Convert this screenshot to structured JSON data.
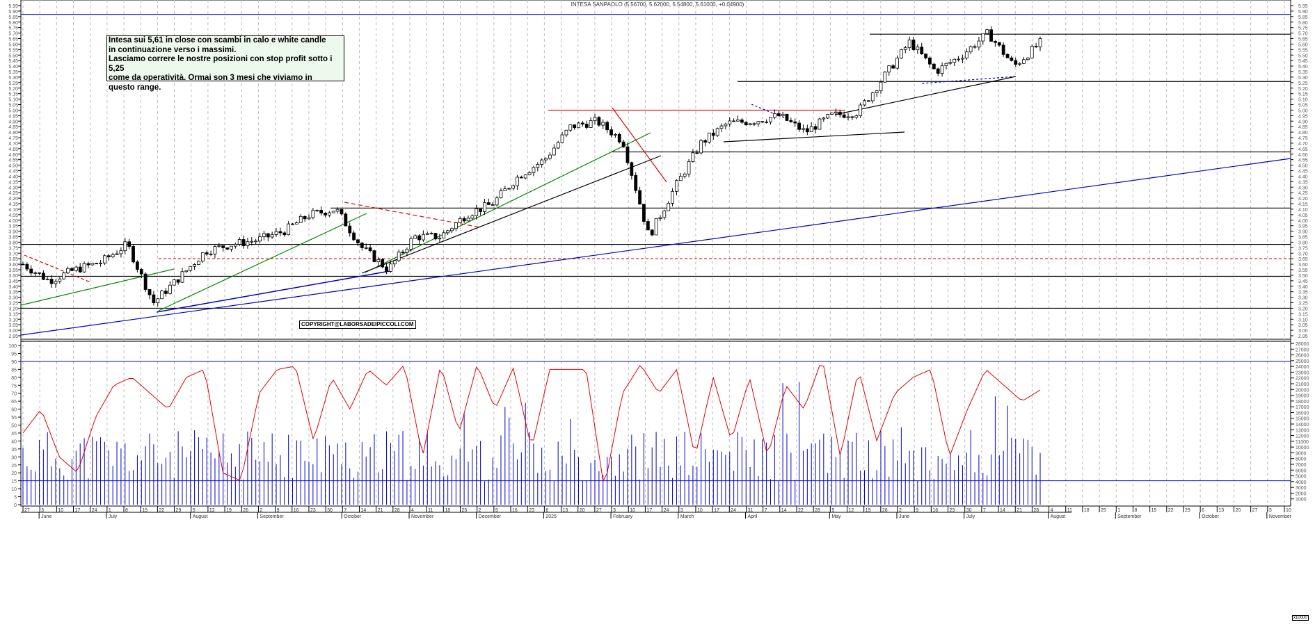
{
  "header": {
    "title": "INTESA SANPAOLO (5.56700, 5.62000, 5.54800, 5.61000, +0.04900)"
  },
  "annotation": {
    "text": "Intesa sui 5,61 in close con scambi in calo e white candle\nin continuazione verso i massimi.\nLasciamo correre le nostre posizioni con stop profit sotto i 5,25\ncome da operatività. Ormai son 3 mesi che viviamo in\nquesto range."
  },
  "copyright": "COPYRIGHT@LABORSADEIPICCOLI.COM",
  "volume_unit": "x10000",
  "colors": {
    "price_candles": "#000000",
    "oscillator_line": "#e00000",
    "volume_bars": "#0000cc",
    "support_lines": "#000000",
    "blue_trendline": "#0000cc",
    "green_trendline": "#008800",
    "red_resistance": "#e00000",
    "note_background": "#eef9ee",
    "grid": "#bbbbbb"
  },
  "chart_data": [
    {
      "type": "candlestick",
      "title": "INTESA SANPAOLO (5.56700, 5.62000, 5.54800, 5.61000, +0.04900)",
      "ohlc_last": {
        "open": 5.567,
        "high": 5.62,
        "low": 5.548,
        "close": 5.61,
        "change": 0.049
      },
      "ylim": [
        2.95,
        5.95
      ],
      "y_ticks": [
        "5.95",
        "5.90",
        "5.85",
        "5.80",
        "5.75",
        "5.70",
        "5.65",
        "5.60",
        "5.55",
        "5.50",
        "5.45",
        "5.40",
        "5.35",
        "5.30",
        "5.25",
        "5.20",
        "5.15",
        "5.10",
        "5.05",
        "5.00",
        "4.95",
        "4.90",
        "4.85",
        "4.80",
        "4.75",
        "4.70",
        "4.65",
        "4.60",
        "4.55",
        "4.50",
        "4.45",
        "4.40",
        "4.35",
        "4.30",
        "4.25",
        "4.20",
        "4.15",
        "4.10",
        "4.05",
        "4.00",
        "3.95",
        "3.90",
        "3.85",
        "3.80",
        "3.75",
        "3.70",
        "3.65",
        "3.60",
        "3.55",
        "3.50",
        "3.45",
        "3.40",
        "3.35",
        "3.30",
        "3.25",
        "3.20",
        "3.15",
        "3.10",
        "3.05",
        "3.00",
        "2.95"
      ],
      "horizontal_levels": [
        {
          "value": 5.87,
          "color": "#0000cc",
          "style": "solid"
        },
        {
          "value": 5.69,
          "color": "#000000",
          "style": "solid",
          "from": "Aug 2025"
        },
        {
          "value": 5.26,
          "color": "#000000",
          "style": "solid",
          "from": "Jun 2025"
        },
        {
          "value": 5.0,
          "color": "#e00000",
          "style": "solid",
          "from": "Mar 2025",
          "to": "Jul 2025"
        },
        {
          "value": 4.62,
          "color": "#000000",
          "style": "solid",
          "from": "Feb 2025"
        },
        {
          "value": 4.11,
          "color": "#000000",
          "style": "solid",
          "from": "Nov 2024"
        },
        {
          "value": 3.78,
          "color": "#000000",
          "style": "solid"
        },
        {
          "value": 3.65,
          "color": "#e00000",
          "style": "dashed",
          "from": "Aug 2024"
        },
        {
          "value": 3.49,
          "color": "#000000",
          "style": "solid"
        },
        {
          "value": 3.2,
          "color": "#000000",
          "style": "solid"
        },
        {
          "value": 2.9,
          "color": "#000000",
          "style": "solid"
        }
      ],
      "approx_closes": {
        "dates": [
          "2024-06-03",
          "2024-06-17",
          "2024-07-01",
          "2024-07-15",
          "2024-07-29",
          "2024-08-05",
          "2024-08-19",
          "2024-09-02",
          "2024-09-16",
          "2024-09-30",
          "2024-10-14",
          "2024-10-28",
          "2024-11-04",
          "2024-11-18",
          "2024-11-25",
          "2024-12-09",
          "2024-12-23",
          "2025-01-06",
          "2025-01-20",
          "2025-02-03",
          "2025-02-17",
          "2025-03-03",
          "2025-03-17",
          "2025-03-31",
          "2025-04-07",
          "2025-04-14",
          "2025-04-28",
          "2025-05-12",
          "2025-05-26",
          "2025-06-09",
          "2025-06-23",
          "2025-07-07",
          "2025-07-21",
          "2025-08-04",
          "2025-08-18",
          "2025-09-01",
          "2025-09-15",
          "2025-09-29",
          "2025-10-13",
          "2025-10-27"
        ],
        "values": [
          3.6,
          3.45,
          3.55,
          3.62,
          3.78,
          3.25,
          3.48,
          3.72,
          3.78,
          3.82,
          3.9,
          4.05,
          4.1,
          3.75,
          3.55,
          3.85,
          3.85,
          4.05,
          4.15,
          4.4,
          4.55,
          4.85,
          4.9,
          4.72,
          3.85,
          4.3,
          4.7,
          4.88,
          4.9,
          4.95,
          4.8,
          4.95,
          4.98,
          5.3,
          5.62,
          5.35,
          5.5,
          5.7,
          5.4,
          5.61
        ]
      }
    },
    {
      "type": "line",
      "name": "oscillator",
      "ylim": [
        0,
        100
      ],
      "y_ticks": [
        "100",
        "95",
        "90",
        "85",
        "80",
        "75",
        "70",
        "65",
        "60",
        "55",
        "50",
        "45",
        "40",
        "35",
        "30",
        "25",
        "20",
        "15",
        "10",
        "5",
        "0"
      ],
      "horizontal_levels": [
        90,
        15
      ],
      "approx_values": [
        45,
        60,
        30,
        20,
        55,
        75,
        80,
        70,
        60,
        80,
        85,
        20,
        15,
        70,
        85,
        87,
        40,
        80,
        60,
        85,
        75,
        88,
        30,
        88,
        45,
        88,
        60,
        86,
        35,
        85,
        85,
        85,
        10,
        70,
        88,
        70,
        85,
        30,
        80,
        40,
        80,
        30,
        75,
        60,
        92,
        30,
        85,
        40,
        70,
        80,
        85,
        30,
        60,
        85,
        75,
        65,
        72
      ]
    },
    {
      "type": "bar",
      "name": "volume",
      "unit": "x10000",
      "ylim": [
        0,
        28000
      ],
      "y_ticks": [
        "28000",
        "27000",
        "26000",
        "25000",
        "24000",
        "23000",
        "22000",
        "21000",
        "20000",
        "19000",
        "18000",
        "17000",
        "16000",
        "15000",
        "14000",
        "13000",
        "12000",
        "11000",
        "10000",
        "9000",
        "8000",
        "7000",
        "6000",
        "5000",
        "4000",
        "3000",
        "2000",
        "1000"
      ],
      "reference_levels": [
        25000,
        5000
      ]
    }
  ],
  "x_axis": {
    "day_ticks": [
      "27",
      "3",
      "10",
      "17",
      "24",
      "1",
      "8",
      "15",
      "22",
      "29",
      "5",
      "12",
      "19",
      "26",
      "2",
      "9",
      "16",
      "23",
      "30",
      "7",
      "14",
      "21",
      "28",
      "4",
      "11",
      "18",
      "25",
      "2",
      "9",
      "16",
      "23",
      "6",
      "13",
      "20",
      "27",
      "3",
      "10",
      "17",
      "24",
      "3",
      "10",
      "17",
      "24",
      "31",
      "7",
      "14",
      "22",
      "28",
      "5",
      "12",
      "19",
      "26",
      "2",
      "9",
      "16",
      "23",
      "30",
      "7",
      "14",
      "21",
      "28",
      "4",
      "11",
      "18",
      "25",
      "1",
      "8",
      "15",
      "22",
      "29",
      "6",
      "13",
      "20",
      "27",
      "3",
      "10"
    ],
    "months": [
      "June",
      "July",
      "August",
      "September",
      "October",
      "November",
      "December",
      "2025",
      "February",
      "March",
      "April",
      "May",
      "June",
      "July",
      "August",
      "September",
      "October",
      "November"
    ]
  }
}
